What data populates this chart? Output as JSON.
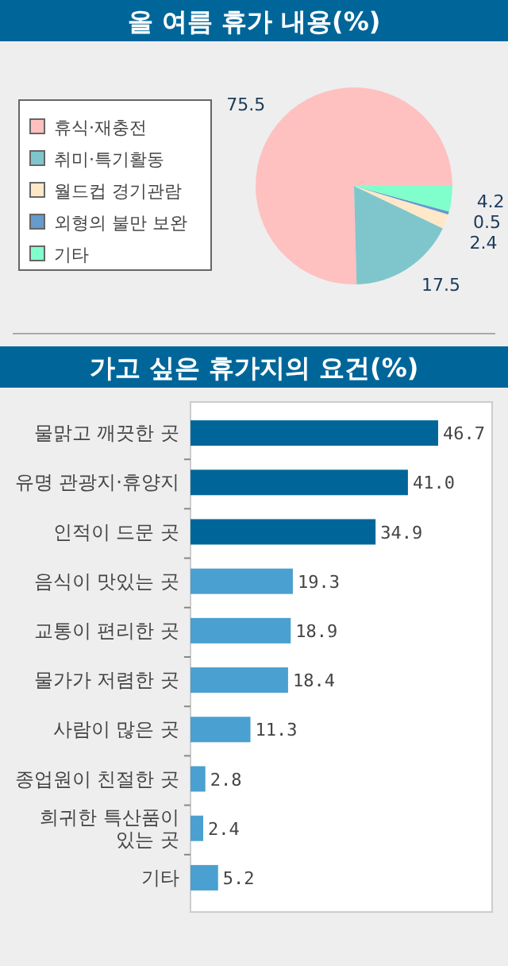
{
  "chart_data": [
    {
      "type": "pie",
      "title": "올 여름 휴가 내용(%)",
      "categories": [
        "휴식·재충전",
        "취미·특기활동",
        "월드컵 경기관람",
        "외형의 불만 보완",
        "기타"
      ],
      "values": [
        75.5,
        17.5,
        2.4,
        0.5,
        4.2
      ],
      "colors": [
        "#ffc0c0",
        "#7ec6cc",
        "#ffe8c8",
        "#6699cc",
        "#80ffcc"
      ],
      "data_labels": true,
      "legend": "left"
    },
    {
      "type": "bar",
      "orientation": "horizontal",
      "title": "가고 싶은 휴가지의 요건(%)",
      "categories": [
        "물맑고 깨끗한 곳",
        "유명 관광지·휴양지",
        "인적이 드문 곳",
        "음식이 맛있는 곳",
        "교통이 편리한 곳",
        "물가가 저렴한 곳",
        "사람이 많은 곳",
        "종업원이 친절한 곳",
        "희귀한 특산품이 있는 곳",
        "기타"
      ],
      "values": [
        46.7,
        41.0,
        34.9,
        19.3,
        18.9,
        18.4,
        11.3,
        2.8,
        2.4,
        5.2
      ],
      "colors": [
        "#006699",
        "#006699",
        "#006699",
        "#4aa0d0",
        "#4aa0d0",
        "#4aa0d0",
        "#4aa0d0",
        "#4aa0d0",
        "#4aa0d0",
        "#4aa0d0"
      ],
      "value_labels": [
        "46.7",
        "41.0",
        "34.9",
        "19.3",
        "18.9",
        "18.4",
        "11.3",
        "2.8",
        "2.4",
        "5.2"
      ]
    }
  ]
}
